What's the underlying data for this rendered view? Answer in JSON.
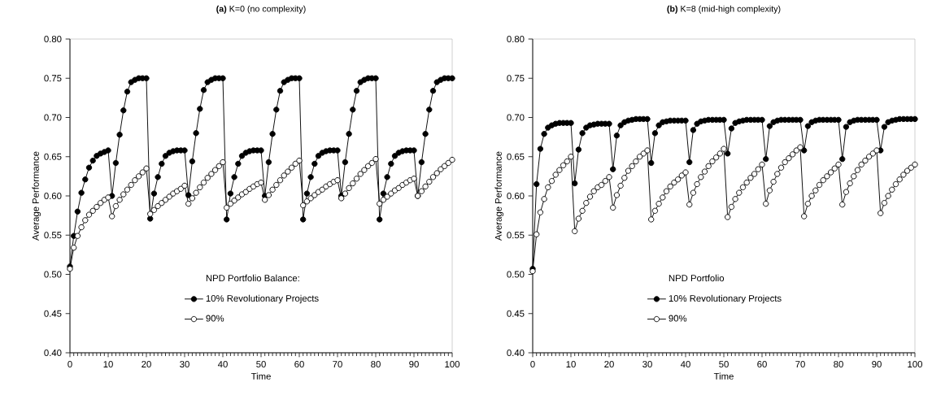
{
  "chart_data": [
    {
      "type": "line",
      "title": "**(a)** K=0 (no complexity)",
      "xlabel": "Time",
      "ylabel": "Average Performance",
      "legend_title": "NPD Portfolio Balance:",
      "legend": "bottom",
      "marker": "circle",
      "line_style": "solid",
      "xlim": [
        0,
        100
      ],
      "xticks": [
        0,
        10,
        20,
        30,
        40,
        50,
        60,
        70,
        80,
        90,
        100
      ],
      "ylim": [
        0.4,
        0.8
      ],
      "yticks": [
        {
          "value": 0.4,
          "label": "0.40"
        },
        {
          "value": 0.45,
          "label": "0.45"
        },
        {
          "value": 0.5,
          "label": "0.50"
        },
        {
          "value": 0.55,
          "label": "0.55"
        },
        {
          "value": 0.6,
          "label": "0.60"
        },
        {
          "value": 0.65,
          "label": "0.65"
        },
        {
          "value": 0.7,
          "label": "0.70"
        },
        {
          "value": 0.75,
          "label": "0.75"
        },
        {
          "value": 0.8,
          "label": "0.80"
        }
      ],
      "x": [
        0,
        1,
        2,
        3,
        4,
        5,
        6,
        7,
        8,
        9,
        10,
        11,
        12,
        13,
        14,
        15,
        16,
        17,
        18,
        19,
        20,
        21,
        22,
        23,
        24,
        25,
        26,
        27,
        28,
        29,
        30,
        31,
        32,
        33,
        34,
        35,
        36,
        37,
        38,
        39,
        40,
        41,
        42,
        43,
        44,
        45,
        46,
        47,
        48,
        49,
        50,
        51,
        52,
        53,
        54,
        55,
        56,
        57,
        58,
        59,
        60,
        61,
        62,
        63,
        64,
        65,
        66,
        67,
        68,
        69,
        70,
        71,
        72,
        73,
        74,
        75,
        76,
        77,
        78,
        79,
        80,
        81,
        82,
        83,
        84,
        85,
        86,
        87,
        88,
        89,
        90,
        91,
        92,
        93,
        94,
        95,
        96,
        97,
        98,
        99,
        100
      ],
      "series": [
        {
          "name": "10% Revolutionary Projects",
          "color": "#000000",
          "values": [
            0.51,
            0.549,
            0.58,
            0.604,
            0.621,
            0.636,
            0.645,
            0.651,
            0.654,
            0.656,
            0.658,
            0.6,
            0.642,
            0.678,
            0.709,
            0.733,
            0.745,
            0.748,
            0.75,
            0.75,
            0.75,
            0.571,
            0.603,
            0.624,
            0.641,
            0.651,
            0.655,
            0.657,
            0.658,
            0.658,
            0.658,
            0.601,
            0.644,
            0.68,
            0.711,
            0.735,
            0.745,
            0.748,
            0.75,
            0.75,
            0.75,
            0.57,
            0.603,
            0.624,
            0.641,
            0.651,
            0.655,
            0.657,
            0.658,
            0.658,
            0.658,
            0.6,
            0.643,
            0.679,
            0.71,
            0.734,
            0.745,
            0.748,
            0.75,
            0.75,
            0.75,
            0.57,
            0.603,
            0.624,
            0.641,
            0.651,
            0.655,
            0.657,
            0.658,
            0.658,
            0.658,
            0.6,
            0.643,
            0.679,
            0.71,
            0.734,
            0.745,
            0.748,
            0.75,
            0.75,
            0.75,
            0.57,
            0.603,
            0.624,
            0.641,
            0.651,
            0.655,
            0.657,
            0.658,
            0.658,
            0.658,
            0.6,
            0.643,
            0.679,
            0.71,
            0.734,
            0.745,
            0.748,
            0.75,
            0.75,
            0.75
          ]
        },
        {
          "name": "90%",
          "color": "#ffffff",
          "values": [
            0.507,
            0.534,
            0.549,
            0.56,
            0.569,
            0.576,
            0.581,
            0.586,
            0.591,
            0.595,
            0.598,
            0.574,
            0.587,
            0.595,
            0.602,
            0.608,
            0.614,
            0.62,
            0.625,
            0.63,
            0.635,
            0.577,
            0.582,
            0.587,
            0.591,
            0.595,
            0.599,
            0.603,
            0.606,
            0.609,
            0.613,
            0.59,
            0.597,
            0.604,
            0.611,
            0.617,
            0.623,
            0.628,
            0.633,
            0.638,
            0.643,
            0.585,
            0.59,
            0.594,
            0.598,
            0.602,
            0.605,
            0.609,
            0.612,
            0.615,
            0.617,
            0.595,
            0.601,
            0.608,
            0.614,
            0.62,
            0.626,
            0.631,
            0.636,
            0.641,
            0.645,
            0.588,
            0.593,
            0.597,
            0.601,
            0.605,
            0.608,
            0.612,
            0.615,
            0.618,
            0.62,
            0.597,
            0.603,
            0.61,
            0.616,
            0.622,
            0.628,
            0.633,
            0.638,
            0.642,
            0.647,
            0.59,
            0.595,
            0.599,
            0.603,
            0.607,
            0.61,
            0.614,
            0.617,
            0.62,
            0.622,
            0.6,
            0.606,
            0.612,
            0.618,
            0.624,
            0.629,
            0.634,
            0.638,
            0.642,
            0.646
          ]
        }
      ]
    },
    {
      "type": "line",
      "title": "**(b)** K=8 (mid-high complexity)",
      "xlabel": "Time",
      "ylabel": "Average Performance",
      "legend_title": "NPD Portfolio",
      "legend": "bottom",
      "marker": "circle",
      "line_style": "solid",
      "xlim": [
        0,
        100
      ],
      "xticks": [
        0,
        10,
        20,
        30,
        40,
        50,
        60,
        70,
        80,
        90,
        100
      ],
      "ylim": [
        0.4,
        0.8
      ],
      "yticks": [
        {
          "value": 0.4,
          "label": "0.40"
        },
        {
          "value": 0.45,
          "label": "0.45"
        },
        {
          "value": 0.5,
          "label": "0.50"
        },
        {
          "value": 0.55,
          "label": "0.55"
        },
        {
          "value": 0.6,
          "label": "0.60"
        },
        {
          "value": 0.65,
          "label": "0.65"
        },
        {
          "value": 0.7,
          "label": "0.70"
        },
        {
          "value": 0.75,
          "label": "0.75"
        },
        {
          "value": 0.8,
          "label": "0.80"
        }
      ],
      "x": [
        0,
        1,
        2,
        3,
        4,
        5,
        6,
        7,
        8,
        9,
        10,
        11,
        12,
        13,
        14,
        15,
        16,
        17,
        18,
        19,
        20,
        21,
        22,
        23,
        24,
        25,
        26,
        27,
        28,
        29,
        30,
        31,
        32,
        33,
        34,
        35,
        36,
        37,
        38,
        39,
        40,
        41,
        42,
        43,
        44,
        45,
        46,
        47,
        48,
        49,
        50,
        51,
        52,
        53,
        54,
        55,
        56,
        57,
        58,
        59,
        60,
        61,
        62,
        63,
        64,
        65,
        66,
        67,
        68,
        69,
        70,
        71,
        72,
        73,
        74,
        75,
        76,
        77,
        78,
        79,
        80,
        81,
        82,
        83,
        84,
        85,
        86,
        87,
        88,
        89,
        90,
        91,
        92,
        93,
        94,
        95,
        96,
        97,
        98,
        99,
        100
      ],
      "series": [
        {
          "name": "10% Revolutionary Projects",
          "color": "#000000",
          "values": [
            0.507,
            0.615,
            0.66,
            0.679,
            0.687,
            0.69,
            0.692,
            0.693,
            0.693,
            0.693,
            0.693,
            0.616,
            0.659,
            0.68,
            0.687,
            0.69,
            0.691,
            0.692,
            0.692,
            0.692,
            0.692,
            0.634,
            0.677,
            0.69,
            0.694,
            0.696,
            0.697,
            0.698,
            0.698,
            0.698,
            0.698,
            0.642,
            0.68,
            0.69,
            0.694,
            0.695,
            0.696,
            0.696,
            0.696,
            0.696,
            0.696,
            0.643,
            0.684,
            0.692,
            0.695,
            0.696,
            0.697,
            0.697,
            0.697,
            0.697,
            0.697,
            0.654,
            0.686,
            0.693,
            0.695,
            0.696,
            0.697,
            0.697,
            0.697,
            0.697,
            0.697,
            0.647,
            0.689,
            0.694,
            0.696,
            0.697,
            0.697,
            0.697,
            0.697,
            0.697,
            0.697,
            0.658,
            0.689,
            0.694,
            0.696,
            0.697,
            0.697,
            0.697,
            0.697,
            0.697,
            0.697,
            0.647,
            0.688,
            0.694,
            0.696,
            0.697,
            0.697,
            0.697,
            0.697,
            0.697,
            0.697,
            0.658,
            0.688,
            0.694,
            0.696,
            0.697,
            0.698,
            0.698,
            0.698,
            0.698,
            0.698
          ]
        },
        {
          "name": "90%",
          "color": "#ffffff",
          "values": [
            0.504,
            0.551,
            0.579,
            0.596,
            0.611,
            0.619,
            0.627,
            0.633,
            0.639,
            0.644,
            0.65,
            0.555,
            0.571,
            0.581,
            0.591,
            0.599,
            0.606,
            0.611,
            0.614,
            0.619,
            0.624,
            0.585,
            0.601,
            0.613,
            0.623,
            0.632,
            0.638,
            0.644,
            0.65,
            0.654,
            0.658,
            0.57,
            0.581,
            0.59,
            0.598,
            0.606,
            0.612,
            0.617,
            0.621,
            0.626,
            0.63,
            0.589,
            0.604,
            0.615,
            0.624,
            0.631,
            0.638,
            0.644,
            0.649,
            0.654,
            0.66,
            0.573,
            0.586,
            0.596,
            0.604,
            0.611,
            0.617,
            0.623,
            0.628,
            0.634,
            0.64,
            0.59,
            0.607,
            0.618,
            0.628,
            0.636,
            0.643,
            0.648,
            0.653,
            0.658,
            0.662,
            0.574,
            0.59,
            0.6,
            0.607,
            0.614,
            0.62,
            0.625,
            0.63,
            0.635,
            0.64,
            0.589,
            0.605,
            0.616,
            0.625,
            0.633,
            0.64,
            0.645,
            0.65,
            0.654,
            0.658,
            0.578,
            0.591,
            0.6,
            0.608,
            0.615,
            0.621,
            0.627,
            0.632,
            0.636,
            0.64
          ]
        }
      ]
    }
  ]
}
